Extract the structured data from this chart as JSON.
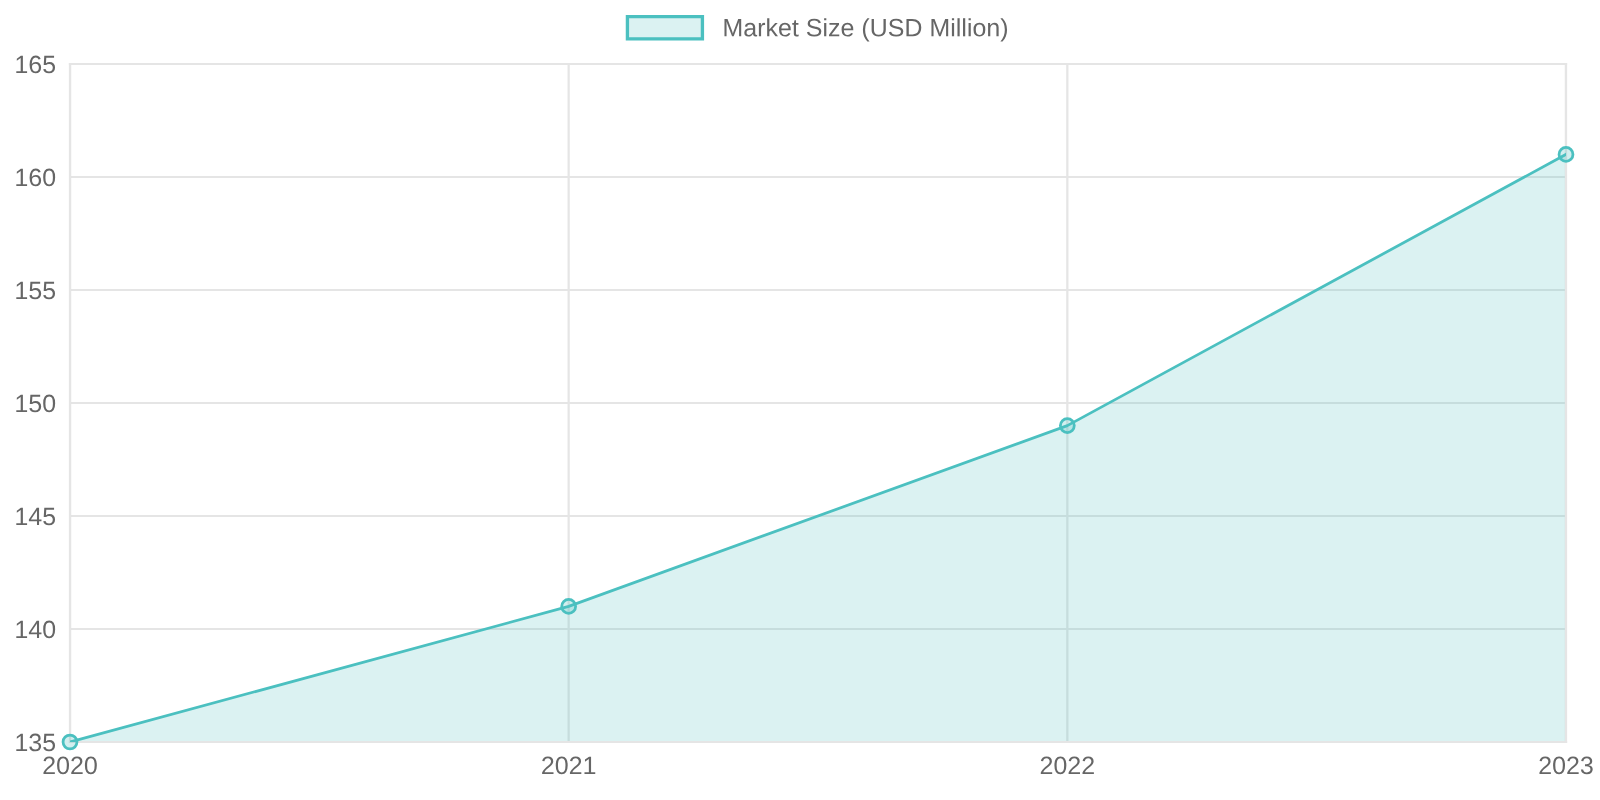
{
  "chart_data": {
    "type": "area",
    "categories": [
      "2020",
      "2021",
      "2022",
      "2023"
    ],
    "series": [
      {
        "name": "Market Size (USD Million)",
        "color": "#4bc0c0",
        "values": [
          135,
          141,
          149,
          161
        ]
      }
    ],
    "ylim": [
      135,
      165
    ],
    "yticks": [
      135,
      140,
      145,
      150,
      155,
      160,
      165
    ],
    "grid": true,
    "legend": "top",
    "marker": "circle",
    "line_style": "solid"
  }
}
